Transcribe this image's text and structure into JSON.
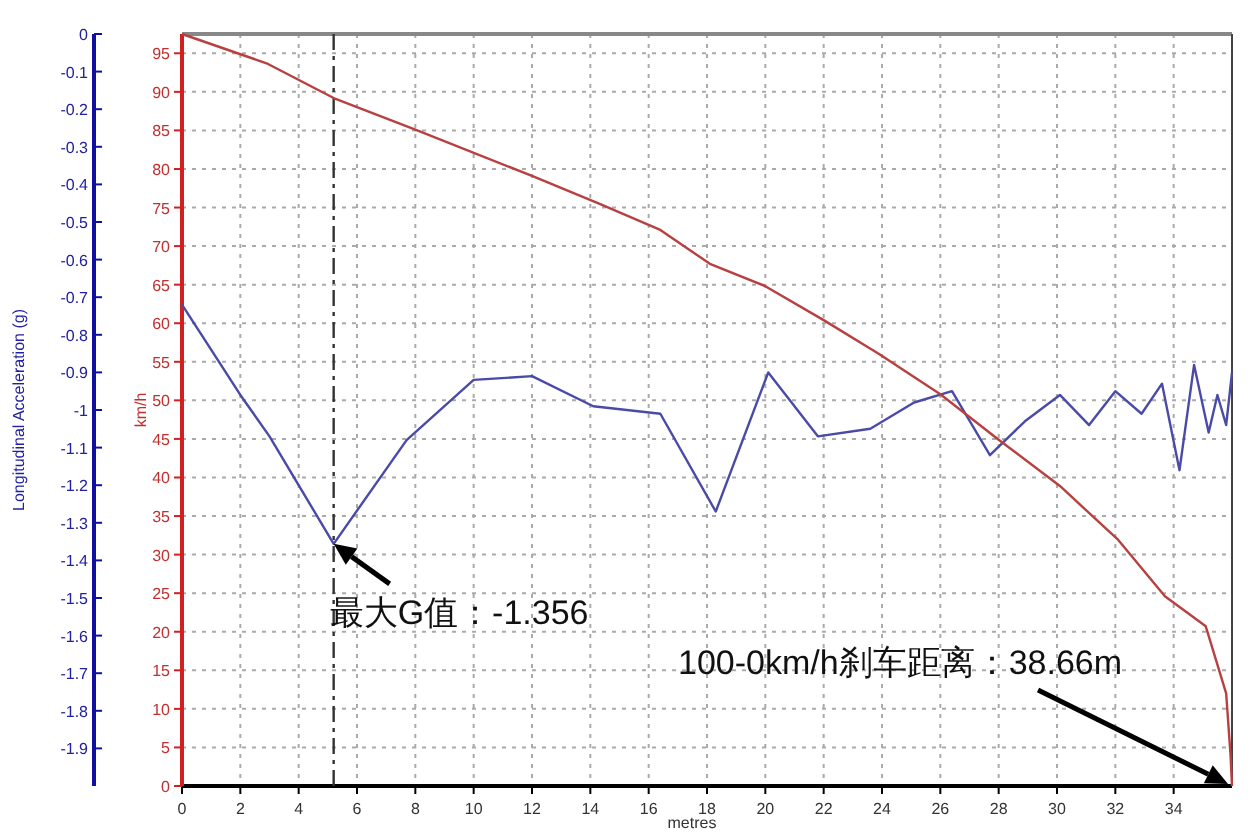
{
  "chart_data": {
    "type": "line",
    "xlabel": "metres",
    "ylabel": "Longitudinal Acceleration (g)",
    "y2label": "km/h",
    "xlim": [
      0,
      36
    ],
    "xticks": [
      0,
      2,
      4,
      6,
      8,
      10,
      12,
      14,
      16,
      18,
      20,
      22,
      24,
      26,
      28,
      30,
      32,
      34
    ],
    "ylim": [
      -2,
      0
    ],
    "yticks": [
      0,
      -0.1,
      -0.2,
      -0.3,
      -0.4,
      -0.5,
      -0.6,
      -0.7,
      -0.8,
      -0.9,
      -1,
      -1.1,
      -1.2,
      -1.3,
      -1.4,
      -1.5,
      -1.6,
      -1.7,
      -1.8,
      -1.9
    ],
    "y2lim": [
      0,
      97.5
    ],
    "y2ticks": [
      0,
      5,
      10,
      15,
      20,
      25,
      30,
      35,
      40,
      45,
      50,
      55,
      60,
      65,
      70,
      75,
      80,
      85,
      90,
      95
    ],
    "grid": true,
    "marker": "none",
    "line_style": "solid",
    "series": [
      {
        "color": "#4a4aa8",
        "x": [
          0,
          2.0,
          3.0,
          5.2,
          7.7,
          10.0,
          12.0,
          14.1,
          16.4,
          18.3,
          20.1,
          21.8,
          23.6,
          25.1,
          26.4,
          27.7,
          28.9,
          30.1,
          31.1,
          32.0,
          32.9,
          33.6,
          34.2,
          34.7,
          35.2,
          35.5,
          35.8,
          36.0
        ],
        "values": [
          -0.72,
          -0.96,
          -1.07,
          -1.356,
          -1.08,
          -0.92,
          -0.91,
          -0.99,
          -1.01,
          -1.27,
          -0.9,
          -1.07,
          -1.05,
          -0.98,
          -0.95,
          -1.12,
          -1.03,
          -0.96,
          -1.04,
          -0.95,
          -1.01,
          -0.93,
          -1.16,
          -0.88,
          -1.06,
          -0.96,
          -1.04,
          -0.9
        ]
      },
      {
        "color": "#b84040",
        "axis": "y2",
        "x": [
          0,
          2.9,
          5.2,
          8.0,
          12.0,
          14.3,
          16.4,
          18.1,
          20.0,
          22.0,
          23.9,
          26.0,
          28.0,
          30.1,
          32.1,
          33.7,
          35.1,
          35.8,
          35.95,
          36.0
        ],
        "values": [
          97.5,
          93.7,
          89.2,
          85.1,
          79.1,
          75.5,
          72.1,
          67.7,
          64.8,
          60.4,
          56.0,
          50.8,
          44.9,
          38.9,
          31.9,
          24.6,
          20.7,
          12,
          4,
          0
        ]
      }
    ],
    "ref_lines": [
      {
        "axis": "x",
        "value": 5.2,
        "line_style": "dashed",
        "color": "#333333"
      }
    ],
    "annotations": [
      {
        "text": "最大G值：-1.356",
        "x": 5.2,
        "y": -1.356
      },
      "100-0km/h刹车距离：38.66m"
    ]
  }
}
